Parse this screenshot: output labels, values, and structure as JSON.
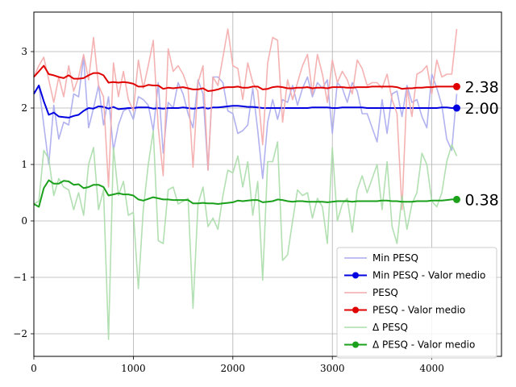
{
  "chart_data": {
    "type": "line",
    "xlim": [
      0,
      4700
    ],
    "ylim": [
      -2.4,
      3.7
    ],
    "xticks": [
      0,
      1000,
      2000,
      3000,
      4000
    ],
    "yticks": [
      -2,
      -1,
      0,
      1,
      2,
      3
    ],
    "grid": true,
    "legend_placement": "bottom-right",
    "x": [
      0,
      50,
      100,
      150,
      200,
      250,
      300,
      350,
      400,
      450,
      500,
      550,
      600,
      650,
      700,
      750,
      800,
      850,
      900,
      950,
      1000,
      1050,
      1100,
      1150,
      1200,
      1250,
      1300,
      1350,
      1400,
      1450,
      1500,
      1550,
      1600,
      1650,
      1700,
      1750,
      1800,
      1850,
      1900,
      1950,
      2000,
      2050,
      2100,
      2150,
      2200,
      2250,
      2300,
      2350,
      2400,
      2450,
      2500,
      2550,
      2600,
      2650,
      2700,
      2750,
      2800,
      2850,
      2900,
      2950,
      3000,
      3050,
      3100,
      3150,
      3200,
      3250,
      3300,
      3350,
      3400,
      3450,
      3500,
      3550,
      3600,
      3650,
      3700,
      3750,
      3800,
      3850,
      3900,
      3950,
      4000,
      4050,
      4100,
      4150,
      4200,
      4250
    ],
    "series": [
      {
        "name": "Min PESQ",
        "color": "#aaaaee",
        "values": [
          2.25,
          2.4,
          1.7,
          1.0,
          2.05,
          1.45,
          1.75,
          1.7,
          2.25,
          2.2,
          2.9,
          1.65,
          2.0,
          2.4,
          1.7,
          2.2,
          1.25,
          1.7,
          1.95,
          2.0,
          1.8,
          2.2,
          2.15,
          2.05,
          1.6,
          2.45,
          1.2,
          2.1,
          2.0,
          2.45,
          2.25,
          1.9,
          1.65,
          2.5,
          2.25,
          0.9,
          2.55,
          2.55,
          2.45,
          1.95,
          1.9,
          1.55,
          1.6,
          1.7,
          2.35,
          1.6,
          0.75,
          1.75,
          2.15,
          1.8,
          2.15,
          2.1,
          2.4,
          2.05,
          2.35,
          2.55,
          2.2,
          2.45,
          2.35,
          2.5,
          1.55,
          2.45,
          2.35,
          2.1,
          2.45,
          2.3,
          1.9,
          1.9,
          1.65,
          1.4,
          2.15,
          1.55,
          2.25,
          2.3,
          1.85,
          2.4,
          2.1,
          2.15,
          1.85,
          1.65,
          2.6,
          2.35,
          2.05,
          1.45,
          1.25,
          2.25
        ]
      },
      {
        "name": "Min PESQ - Valor medio",
        "color": "#0000e0",
        "values": [
          2.25,
          2.4,
          2.12,
          1.88,
          1.92,
          1.85,
          1.84,
          1.83,
          1.86,
          1.88,
          1.95,
          2.0,
          1.99,
          2.03,
          2.02,
          1.99,
          2.02,
          1.98,
          1.99,
          2.0,
          2.0,
          2.01,
          2.01,
          2.01,
          1.99,
          2.0,
          1.99,
          2.0,
          2.0,
          2.0,
          2.01,
          2.0,
          1.99,
          2.0,
          2.01,
          1.99,
          2.01,
          2.01,
          2.02,
          2.03,
          2.04,
          2.04,
          2.03,
          2.02,
          2.02,
          2.01,
          2.0,
          2.0,
          2.0,
          2.0,
          2.0,
          2.0,
          2.0,
          2.0,
          2.0,
          2.0,
          2.01,
          2.01,
          2.01,
          2.01,
          2.0,
          2.0,
          2.01,
          2.01,
          2.01,
          2.01,
          2.01,
          2.0,
          2.0,
          2.0,
          2.0,
          2.0,
          2.0,
          2.0,
          2.0,
          2.0,
          2.0,
          2.0,
          2.0,
          2.0,
          2.0,
          2.0,
          2.01,
          2.01,
          2.0,
          2.0
        ]
      },
      {
        "name": "PESQ",
        "color": "#f4aaaa",
        "values": [
          2.55,
          2.75,
          2.9,
          2.5,
          2.1,
          2.55,
          2.2,
          2.75,
          2.3,
          2.55,
          2.95,
          2.5,
          3.25,
          2.4,
          2.2,
          0.6,
          2.8,
          2.2,
          2.65,
          2.15,
          1.95,
          2.85,
          2.35,
          2.75,
          3.2,
          1.65,
          0.8,
          3.05,
          2.65,
          2.75,
          2.6,
          2.35,
          0.95,
          2.45,
          2.75,
          0.9,
          2.55,
          2.4,
          2.9,
          3.4,
          2.75,
          2.7,
          2.15,
          2.8,
          2.45,
          2.3,
          1.35,
          2.8,
          3.25,
          3.2,
          1.75,
          2.5,
          2.15,
          2.45,
          2.75,
          2.95,
          2.25,
          2.95,
          2.6,
          2.1,
          2.85,
          2.45,
          2.65,
          2.5,
          2.25,
          2.85,
          2.7,
          2.4,
          2.45,
          2.45,
          2.35,
          2.6,
          2.15,
          1.9,
          0.2,
          2.35,
          1.85,
          2.6,
          2.65,
          2.75,
          2.25,
          2.85,
          2.55,
          2.6,
          2.6,
          3.4
        ]
      },
      {
        "name": "PESQ - Valor medio",
        "color": "#e00000",
        "values": [
          2.55,
          2.65,
          2.75,
          2.6,
          2.58,
          2.55,
          2.53,
          2.58,
          2.52,
          2.52,
          2.53,
          2.58,
          2.62,
          2.62,
          2.58,
          2.45,
          2.46,
          2.45,
          2.46,
          2.45,
          2.43,
          2.38,
          2.38,
          2.41,
          2.4,
          2.4,
          2.34,
          2.36,
          2.35,
          2.36,
          2.37,
          2.35,
          2.33,
          2.33,
          2.35,
          2.3,
          2.31,
          2.33,
          2.36,
          2.37,
          2.37,
          2.38,
          2.36,
          2.36,
          2.38,
          2.38,
          2.33,
          2.34,
          2.37,
          2.38,
          2.37,
          2.35,
          2.35,
          2.36,
          2.36,
          2.37,
          2.35,
          2.36,
          2.36,
          2.35,
          2.37,
          2.37,
          2.37,
          2.36,
          2.36,
          2.37,
          2.37,
          2.37,
          2.38,
          2.38,
          2.38,
          2.38,
          2.38,
          2.37,
          2.34,
          2.35,
          2.35,
          2.36,
          2.36,
          2.37,
          2.37,
          2.38,
          2.38,
          2.38,
          2.38,
          2.38
        ]
      },
      {
        "name": "Δ PESQ",
        "color": "#aaddaa",
        "values": [
          0.3,
          0.35,
          1.25,
          1.1,
          0.45,
          0.75,
          0.6,
          0.55,
          0.2,
          0.5,
          0.1,
          1.0,
          1.3,
          0.2,
          0.55,
          -2.1,
          1.3,
          0.45,
          0.7,
          0.1,
          0.15,
          -1.2,
          0.2,
          1.0,
          1.6,
          -0.35,
          -0.4,
          0.55,
          0.6,
          0.3,
          0.35,
          0.4,
          -1.55,
          0.3,
          0.6,
          -0.1,
          0.05,
          -0.15,
          0.45,
          0.9,
          0.85,
          1.15,
          0.6,
          1.05,
          0.1,
          0.7,
          -1.05,
          1.05,
          1.05,
          1.4,
          -0.7,
          -0.6,
          0.0,
          0.55,
          0.45,
          0.5,
          0.05,
          0.4,
          0.25,
          -0.4,
          1.3,
          0.0,
          0.3,
          0.4,
          -0.2,
          0.55,
          0.8,
          0.5,
          0.75,
          1.0,
          0.2,
          1.05,
          -0.1,
          -0.4,
          0.45,
          -0.15,
          0.3,
          0.5,
          1.2,
          1.0,
          0.35,
          0.25,
          0.5,
          1.05,
          1.35,
          1.15
        ]
      },
      {
        "name": "Δ PESQ - Valor medio",
        "color": "#1aa01a",
        "values": [
          0.3,
          0.25,
          0.58,
          0.72,
          0.66,
          0.66,
          0.71,
          0.7,
          0.64,
          0.65,
          0.58,
          0.6,
          0.64,
          0.64,
          0.6,
          0.45,
          0.47,
          0.49,
          0.47,
          0.47,
          0.45,
          0.38,
          0.36,
          0.39,
          0.42,
          0.4,
          0.38,
          0.38,
          0.37,
          0.37,
          0.37,
          0.37,
          0.31,
          0.31,
          0.32,
          0.31,
          0.31,
          0.3,
          0.31,
          0.32,
          0.33,
          0.36,
          0.35,
          0.36,
          0.37,
          0.37,
          0.33,
          0.34,
          0.35,
          0.38,
          0.37,
          0.35,
          0.34,
          0.35,
          0.35,
          0.34,
          0.34,
          0.34,
          0.34,
          0.33,
          0.34,
          0.35,
          0.35,
          0.35,
          0.34,
          0.35,
          0.35,
          0.35,
          0.35,
          0.35,
          0.36,
          0.36,
          0.35,
          0.35,
          0.34,
          0.34,
          0.34,
          0.35,
          0.35,
          0.35,
          0.36,
          0.36,
          0.36,
          0.37,
          0.38,
          0.38
        ]
      }
    ],
    "end_labels": [
      {
        "series": "PESQ - Valor medio",
        "text": "2.38"
      },
      {
        "series": "Min PESQ - Valor medio",
        "text": "2.00"
      },
      {
        "series": "Δ PESQ - Valor medio",
        "text": "0.38"
      }
    ],
    "minus_sign": "−"
  },
  "legend": {
    "entries": [
      {
        "label": "Min PESQ",
        "color": "#aaaaee",
        "marker": false
      },
      {
        "label": "Min PESQ - Valor medio",
        "color": "#0000e0",
        "marker": true
      },
      {
        "label": "PESQ",
        "color": "#f4aaaa",
        "marker": false
      },
      {
        "label": "PESQ - Valor medio",
        "color": "#e00000",
        "marker": true
      },
      {
        "label": "Δ PESQ",
        "color": "#aaddaa",
        "marker": false
      },
      {
        "label": "Δ PESQ - Valor medio",
        "color": "#1aa01a",
        "marker": true
      }
    ]
  }
}
